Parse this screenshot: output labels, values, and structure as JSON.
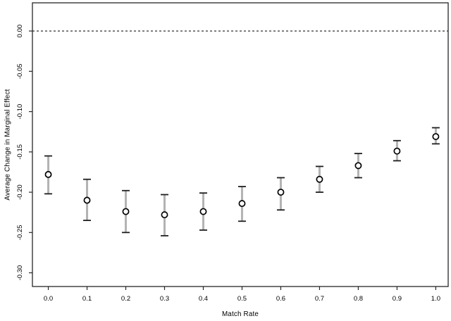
{
  "figure": {
    "background": "#ffffff"
  },
  "chart_data": {
    "type": "scatter",
    "title": "",
    "xlabel": "Match Rate",
    "ylabel": "Average Change in Marginal Effect",
    "xlim": [
      -0.041,
      1.032
    ],
    "ylim": [
      -0.317,
      0.035
    ],
    "grid": false,
    "legend": "none",
    "ref_line": {
      "y": 0.0,
      "style": "dashed"
    },
    "x_ticks": [
      {
        "v": 0.0,
        "label": "0.0"
      },
      {
        "v": 0.1,
        "label": "0.1"
      },
      {
        "v": 0.2,
        "label": "0.2"
      },
      {
        "v": 0.3,
        "label": "0.3"
      },
      {
        "v": 0.4,
        "label": "0.4"
      },
      {
        "v": 0.5,
        "label": "0.5"
      },
      {
        "v": 0.6,
        "label": "0.6"
      },
      {
        "v": 0.7,
        "label": "0.7"
      },
      {
        "v": 0.8,
        "label": "0.8"
      },
      {
        "v": 0.9,
        "label": "0.9"
      },
      {
        "v": 1.0,
        "label": "1.0"
      }
    ],
    "y_ticks": [
      {
        "v": 0.0,
        "label": "0.00"
      },
      {
        "v": -0.05,
        "label": "-0.05"
      },
      {
        "v": -0.1,
        "label": "-0.10"
      },
      {
        "v": -0.15,
        "label": "-0.15"
      },
      {
        "v": -0.2,
        "label": "-0.20"
      },
      {
        "v": -0.25,
        "label": "-0.25"
      },
      {
        "v": -0.3,
        "label": "-0.30"
      }
    ],
    "points": [
      {
        "x": 0.0,
        "y": -0.178,
        "lo": -0.202,
        "hi": -0.155
      },
      {
        "x": 0.1,
        "y": -0.21,
        "lo": -0.235,
        "hi": -0.184
      },
      {
        "x": 0.2,
        "y": -0.224,
        "lo": -0.25,
        "hi": -0.198
      },
      {
        "x": 0.3,
        "y": -0.228,
        "lo": -0.254,
        "hi": -0.203
      },
      {
        "x": 0.4,
        "y": -0.224,
        "lo": -0.247,
        "hi": -0.201
      },
      {
        "x": 0.5,
        "y": -0.214,
        "lo": -0.236,
        "hi": -0.193
      },
      {
        "x": 0.6,
        "y": -0.2,
        "lo": -0.222,
        "hi": -0.182
      },
      {
        "x": 0.7,
        "y": -0.184,
        "lo": -0.2,
        "hi": -0.168
      },
      {
        "x": 0.8,
        "y": -0.167,
        "lo": -0.182,
        "hi": -0.152
      },
      {
        "x": 0.9,
        "y": -0.149,
        "lo": -0.161,
        "hi": -0.136
      },
      {
        "x": 1.0,
        "y": -0.131,
        "lo": -0.14,
        "hi": -0.12
      }
    ],
    "colors": {
      "axis": "#262626",
      "tick_label": "#000000",
      "ref_line": "#1a1a1a",
      "error_bar": "#b3b3b3",
      "error_cap": "#1f1f1f",
      "point_stroke": "#000000",
      "point_fill": "#ffffff",
      "background": "#ffffff"
    }
  }
}
